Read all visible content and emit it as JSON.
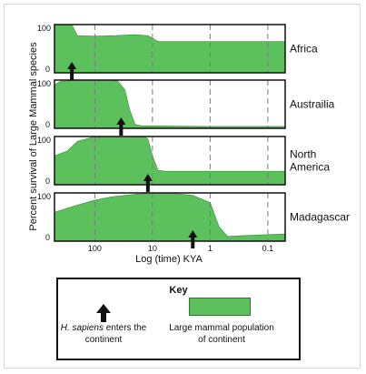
{
  "chart_data": {
    "type": "area",
    "ylabel": "Percent survival of Large Mammal species",
    "xlabel": "Log (time) KYA",
    "x_scale": "log-reversed",
    "xlim": [
      500,
      0.05
    ],
    "xticks": [
      {
        "value": 100,
        "label": "100"
      },
      {
        "value": 10,
        "label": "10"
      },
      {
        "value": 1,
        "label": "1"
      },
      {
        "value": 0.1,
        "label": "0.1"
      }
    ],
    "ytick_labels": [
      "0",
      "100"
    ],
    "ylim": [
      0,
      100
    ],
    "fill_color": "#5cc15c",
    "panels": [
      {
        "name": "Africa",
        "name_lines": [
          "Africa"
        ],
        "arrival_kya": 250,
        "x": [
          500,
          250,
          200,
          100,
          50,
          20,
          12,
          8,
          5,
          1,
          0.05
        ],
        "y": [
          100,
          100,
          77,
          76,
          77,
          79,
          77,
          65,
          65,
          65,
          65
        ]
      },
      {
        "name": "Australia",
        "name_lines": [
          "Austrailia"
        ],
        "arrival_kya": 35,
        "x": [
          500,
          400,
          200,
          100,
          50,
          40,
          30,
          25,
          20,
          15,
          10,
          1,
          0.05
        ],
        "y": [
          90,
          97,
          100,
          100,
          100,
          98,
          80,
          40,
          8,
          5,
          5,
          4,
          4
        ]
      },
      {
        "name": "North America",
        "name_lines": [
          "North",
          "America"
        ],
        "arrival_kya": 12,
        "x": [
          500,
          300,
          200,
          100,
          50,
          20,
          14,
          12,
          10,
          8,
          6,
          1,
          0.05
        ],
        "y": [
          60,
          70,
          90,
          100,
          100,
          100,
          100,
          95,
          60,
          30,
          28,
          28,
          28
        ]
      },
      {
        "name": "Madagascar",
        "name_lines": [
          "Madagascar"
        ],
        "arrival_kya": 2,
        "x": [
          500,
          200,
          100,
          50,
          20,
          10,
          5,
          2,
          1,
          0.7,
          0.5,
          0.2,
          0.05
        ],
        "y": [
          60,
          75,
          85,
          92,
          97,
          100,
          100,
          95,
          80,
          30,
          10,
          12,
          15
        ]
      }
    ]
  },
  "key": {
    "title": "Key",
    "arrow_label_species": "H. sapiens",
    "arrow_label_rest": " enters the continent",
    "swatch_label": "Large mammal population of continent"
  }
}
